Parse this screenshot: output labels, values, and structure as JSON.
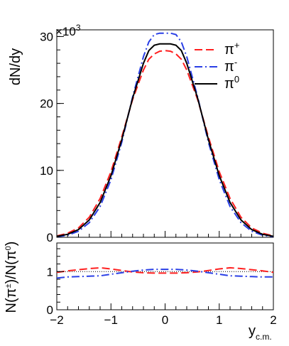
{
  "chart_data": [
    {
      "type": "line",
      "panel": "top",
      "xlim": [
        -2,
        2
      ],
      "ylim": [
        0,
        31
      ],
      "ylabel": "dN/dy",
      "y_multiplier": "×10",
      "y_multiplier_exp": "3",
      "yticks": [
        0,
        10,
        20,
        30
      ],
      "ytick_labels": [
        "0",
        "10",
        "20",
        "30"
      ],
      "legend_position": "top-right",
      "x": [
        -2.0,
        -1.8,
        -1.6,
        -1.4,
        -1.2,
        -1.0,
        -0.8,
        -0.6,
        -0.4,
        -0.3,
        -0.2,
        -0.1,
        0.0,
        0.1,
        0.2,
        0.3,
        0.4,
        0.6,
        0.8,
        1.0,
        1.2,
        1.4,
        1.6,
        1.8,
        2.0
      ],
      "series": [
        {
          "name": "π+",
          "base": "π",
          "sup": "+",
          "color": "#ff2020",
          "dash": "11 5",
          "values": [
            0.2,
            0.6,
            1.4,
            3.0,
            5.8,
            9.8,
            15.0,
            20.6,
            25.0,
            26.6,
            27.4,
            27.8,
            27.9,
            27.8,
            27.4,
            26.6,
            25.0,
            20.6,
            15.0,
            9.8,
            5.8,
            3.0,
            1.4,
            0.6,
            0.2
          ]
        },
        {
          "name": "π-",
          "base": "π",
          "sup": "-",
          "color": "#2a3fe6",
          "dash": "11 4 2 4",
          "values": [
            0.1,
            0.3,
            0.9,
            2.2,
            4.6,
            8.6,
            14.2,
            21.0,
            27.0,
            29.2,
            30.3,
            30.5,
            30.5,
            30.5,
            30.3,
            29.2,
            27.0,
            21.0,
            14.2,
            8.6,
            4.6,
            2.2,
            0.9,
            0.3,
            0.1
          ]
        },
        {
          "name": "π0",
          "base": "π",
          "sup": "0",
          "color": "#000000",
          "dash": "",
          "values": [
            0.15,
            0.45,
            1.15,
            2.6,
            5.2,
            9.2,
            14.6,
            20.8,
            26.0,
            27.9,
            28.7,
            28.9,
            28.9,
            28.9,
            28.7,
            27.9,
            26.0,
            20.8,
            14.6,
            9.2,
            5.2,
            2.6,
            1.15,
            0.45,
            0.15
          ]
        }
      ]
    },
    {
      "type": "line",
      "panel": "bottom",
      "xlim": [
        -2,
        2
      ],
      "ylim": [
        0,
        1.75
      ],
      "ylabel": "N(π±)/N(π0)",
      "xlabel": "y",
      "xlabel_sub": "c.m.",
      "yticks": [
        0,
        1
      ],
      "ytick_labels": [
        "0",
        "1"
      ],
      "xticks": [
        -2,
        -1,
        0,
        1,
        2
      ],
      "xtick_labels": [
        "−2",
        "−1",
        "0",
        "1",
        "2"
      ],
      "reference_line": 1.0,
      "x": [
        -2.0,
        -1.8,
        -1.6,
        -1.4,
        -1.2,
        -1.0,
        -0.8,
        -0.6,
        -0.4,
        -0.2,
        0.0,
        0.2,
        0.4,
        0.6,
        0.8,
        1.0,
        1.2,
        1.4,
        1.6,
        1.8,
        2.0
      ],
      "series": [
        {
          "name": "π+/π0",
          "color": "#ff2020",
          "dash": "11 5",
          "values": [
            0.98,
            1.02,
            1.05,
            1.08,
            1.1,
            1.07,
            1.03,
            0.99,
            0.97,
            0.96,
            0.96,
            0.96,
            0.97,
            0.99,
            1.03,
            1.07,
            1.1,
            1.08,
            1.05,
            1.02,
            0.98
          ]
        },
        {
          "name": "π-/π0",
          "color": "#2a3fe6",
          "dash": "11 4 2 4",
          "values": [
            0.83,
            0.86,
            0.87,
            0.88,
            0.89,
            0.93,
            0.97,
            1.01,
            1.04,
            1.06,
            1.06,
            1.06,
            1.04,
            1.01,
            0.97,
            0.93,
            0.89,
            0.88,
            0.87,
            0.86,
            0.86
          ]
        }
      ]
    }
  ]
}
